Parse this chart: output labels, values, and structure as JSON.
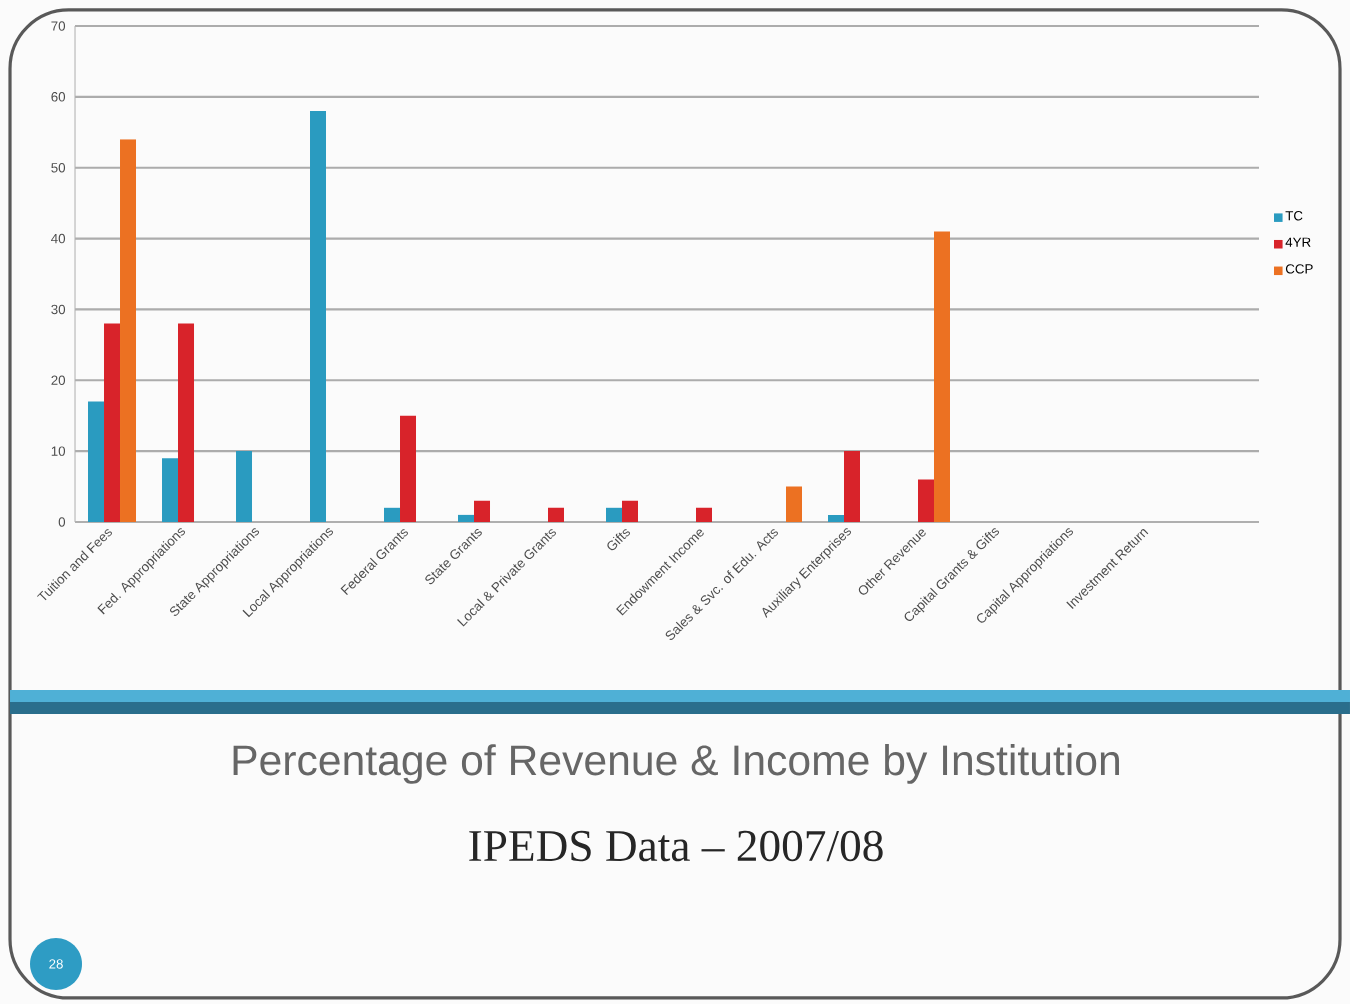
{
  "chart_data": {
    "type": "bar",
    "title": "Percentage of Revenue & Income by Institution",
    "subtitle": "IPEDS Data – 2007/08",
    "categories": [
      "Tuition and Fees",
      "Fed. Appropriations",
      "State Appropriations",
      "Local Appropriations",
      "Federal Grants",
      "State Grants",
      "Local & Private Grants",
      "Gifts",
      "Endowment Income",
      "Sales & Svc. of Edu. Acts",
      "Auxiliary Enterprises",
      "Other Revenue",
      "Capital Grants & Gifts",
      "Capital Appropriations",
      "Investment Return",
      null
    ],
    "series": [
      {
        "name": "TC",
        "color": "#2a9bc0",
        "values": [
          17,
          9,
          10,
          58,
          2,
          1,
          null,
          2,
          null,
          null,
          1,
          null,
          null,
          null,
          null,
          null
        ]
      },
      {
        "name": "4YR",
        "color": "#d8232a",
        "values": [
          28,
          28,
          null,
          null,
          15,
          3,
          2,
          3,
          2,
          null,
          10,
          6,
          null,
          null,
          null,
          null
        ]
      },
      {
        "name": "CCP",
        "color": "#ec7122",
        "values": [
          54,
          null,
          null,
          null,
          null,
          null,
          null,
          null,
          null,
          5,
          null,
          41,
          null,
          null,
          null,
          null
        ]
      }
    ],
    "ylim": [
      0,
      70
    ],
    "yticks": [
      0,
      10,
      20,
      30,
      40,
      50,
      60,
      70
    ],
    "grid": "y",
    "legend": "right",
    "annotations": [
      "28"
    ]
  }
}
